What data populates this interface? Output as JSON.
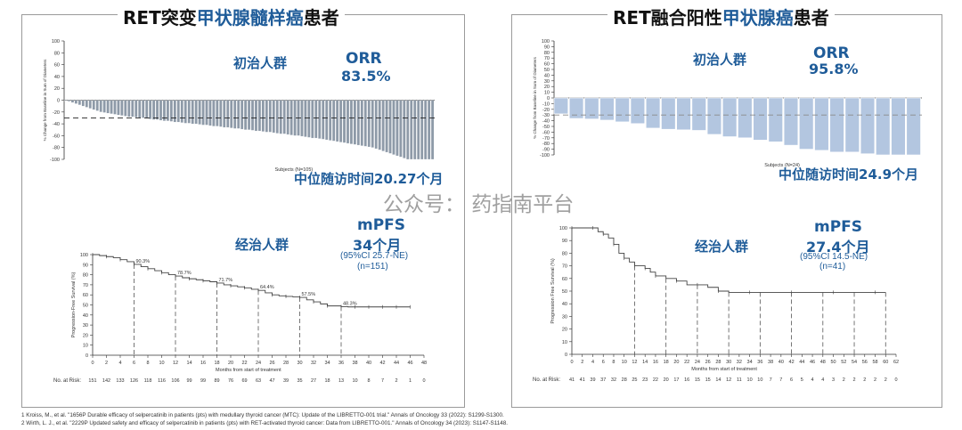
{
  "left": {
    "title_pre": "RET突变",
    "title_hl": "甲状腺髓样癌",
    "title_post": "患者",
    "orr_group": "初治人群",
    "orr_label": "ORR",
    "orr_value": "83.5%",
    "followup": "中位随访时间20.27个月",
    "mpfs_group": "经治人群",
    "mpfs_label": "mPFS",
    "mpfs_value": "34个月",
    "ci": "(95%CI 25.7-NE)",
    "n": "(n=151)"
  },
  "right": {
    "title_pre": "RET融合阳性",
    "title_hl": "甲状腺癌",
    "title_post": "患者",
    "orr_group": "初治人群",
    "orr_label": "ORR",
    "orr_value": "95.8%",
    "followup": "中位随访时间24.9个月",
    "mpfs_group": "经治人群",
    "mpfs_label": "mPFS",
    "mpfs_value": "27.4个月",
    "ci": "(95%CI 14.5-NE)",
    "n": "(n=41)"
  },
  "watermark": "公众号：  药指南平台",
  "references": [
    "1 Kroiss, M., et al. \"1656P Durable efficacy of selpercatinib in patients (pts) with medullary thyroid cancer (MTC): Update of the LIBRETTO-001 trial.\" Annals of Oncology 33 (2022): S1299-S1300.",
    "2 Wirth, L. J., et al. \"2229P Updated safety and efficacy of selpercatinib in patients (pts) with RET-activated thyroid cancer: Data from LIBRETTO-001.\" Annals of Oncology 34 (2023): S1147-S1148."
  ],
  "colors": {
    "accent": "#1f5c99",
    "left_bar": "#8e9aa8",
    "right_bar": "#b3c6e0"
  },
  "chart_data": [
    {
      "type": "bar",
      "id": "left-waterfall",
      "ylabel": "% Change from Baseline in Sum of Diameters",
      "xlabel": "Subjects (N=105)",
      "ylim": [
        -100,
        100
      ],
      "yticks": [
        100,
        80,
        60,
        40,
        20,
        0,
        -20,
        -40,
        -60,
        -80,
        -100
      ],
      "threshold": -30,
      "values": [
        -1,
        -2,
        -4,
        -6,
        -8,
        -10,
        -12,
        -14,
        -16,
        -18,
        -20,
        -21,
        -22,
        -23,
        -24,
        -25,
        -26,
        -27,
        -28,
        -28,
        -29,
        -30,
        -30,
        -31,
        -32,
        -33,
        -33,
        -34,
        -35,
        -35,
        -36,
        -37,
        -37,
        -38,
        -39,
        -39,
        -40,
        -40,
        -41,
        -42,
        -42,
        -43,
        -44,
        -44,
        -45,
        -46,
        -46,
        -47,
        -48,
        -48,
        -49,
        -50,
        -50,
        -51,
        -52,
        -52,
        -53,
        -54,
        -54,
        -55,
        -56,
        -57,
        -57,
        -58,
        -59,
        -60,
        -60,
        -61,
        -62,
        -63,
        -64,
        -64,
        -65,
        -66,
        -67,
        -68,
        -69,
        -70,
        -71,
        -72,
        -73,
        -74,
        -75,
        -76,
        -77,
        -78,
        -79,
        -80,
        -82,
        -84,
        -86,
        -88,
        -90,
        -92,
        -94,
        -96,
        -98,
        -100,
        -100,
        -100,
        -100,
        -100,
        -100,
        -100,
        -100
      ]
    },
    {
      "type": "bar",
      "id": "right-waterfall",
      "ylabel": "% Change from Baseline in Sum of Diameters",
      "xlabel": "Subjects (N=24)",
      "ylim": [
        -100,
        100
      ],
      "yticks": [
        100,
        90,
        80,
        70,
        60,
        50,
        40,
        30,
        20,
        10,
        0,
        -10,
        -20,
        -30,
        -40,
        -50,
        -60,
        -70,
        -80,
        -90,
        -100
      ],
      "threshold": -30,
      "values": [
        -28,
        -36,
        -37,
        -39,
        -42,
        -45,
        -53,
        -55,
        -56,
        -57,
        -64,
        -68,
        -70,
        -74,
        -77,
        -83,
        -90,
        -92,
        -95,
        -95,
        -98,
        -100,
        -100,
        -100
      ]
    },
    {
      "type": "line",
      "id": "left-km",
      "ylabel": "Progression-Free Survival (%)",
      "xlabel": "Months from start of treatment",
      "xlim": [
        0,
        48
      ],
      "ylim": [
        0,
        100
      ],
      "xticks": [
        0,
        2,
        4,
        6,
        8,
        10,
        12,
        14,
        16,
        18,
        20,
        22,
        24,
        26,
        28,
        30,
        32,
        34,
        36,
        38,
        40,
        42,
        44,
        46,
        48
      ],
      "yticks": [
        0,
        10,
        20,
        30,
        40,
        50,
        60,
        70,
        80,
        90,
        100
      ],
      "x": [
        0,
        1,
        2,
        3,
        4,
        5,
        6,
        7,
        8,
        9,
        10,
        11,
        12,
        13,
        14,
        15,
        16,
        17,
        18,
        19,
        20,
        21,
        22,
        23,
        24,
        25,
        26,
        27,
        28,
        29,
        30,
        31,
        32,
        33,
        34,
        35,
        36,
        37,
        38,
        39,
        40,
        41,
        42,
        43,
        44,
        45,
        46
      ],
      "y": [
        100,
        99,
        98,
        97,
        95,
        93,
        90.3,
        88,
        86,
        84,
        82,
        80,
        78.7,
        77,
        76,
        75,
        74,
        73,
        71.7,
        70,
        69,
        68,
        67,
        65.5,
        64.4,
        62,
        60,
        59,
        58.5,
        58,
        57.5,
        55,
        53,
        51,
        49,
        49,
        48.3,
        48,
        48,
        48,
        48,
        48,
        48,
        48,
        48,
        48,
        48
      ],
      "landmarks": [
        {
          "x": 6,
          "label": "90.3%"
        },
        {
          "x": 12,
          "label": "78.7%"
        },
        {
          "x": 18,
          "label": "71.7%"
        },
        {
          "x": 24,
          "label": "64.4%"
        },
        {
          "x": 30,
          "label": "57.5%"
        },
        {
          "x": 36,
          "label": "48.3%"
        }
      ],
      "at_risk_label": "No. at Risk:",
      "at_risk": [
        "151",
        "142",
        "133",
        "126",
        "118",
        "116",
        "106",
        "99",
        "99",
        "89",
        "76",
        "69",
        "63",
        "47",
        "39",
        "35",
        "27",
        "18",
        "13",
        "10",
        "8",
        "7",
        "2",
        "1",
        "0"
      ]
    },
    {
      "type": "line",
      "id": "right-km",
      "ylabel": "Progression Free Survival (%)",
      "xlabel": "Months from start of treatment",
      "xlim": [
        0,
        62
      ],
      "ylim": [
        0,
        100
      ],
      "xticks": [
        0,
        2,
        4,
        6,
        8,
        10,
        12,
        14,
        16,
        18,
        20,
        22,
        24,
        26,
        28,
        30,
        32,
        34,
        36,
        38,
        40,
        42,
        44,
        46,
        48,
        50,
        52,
        54,
        56,
        58,
        60,
        62
      ],
      "yticks": [
        0,
        10,
        20,
        30,
        40,
        50,
        60,
        70,
        80,
        90,
        100
      ],
      "x": [
        0,
        2,
        4,
        5,
        6,
        7,
        8,
        9,
        10,
        11,
        12,
        13,
        14,
        15,
        16,
        18,
        20,
        22,
        24,
        26,
        28,
        30,
        34,
        38,
        42,
        46,
        50,
        54,
        58,
        60
      ],
      "y": [
        100,
        100,
        100,
        97,
        95,
        92,
        87,
        80,
        76,
        73,
        70,
        70,
        68,
        65,
        62,
        60,
        58,
        55,
        55,
        53,
        50,
        49,
        49,
        49,
        49,
        49,
        49,
        49,
        49,
        49
      ],
      "landmarks_x": [
        12,
        18,
        24,
        30,
        36,
        42,
        48,
        54,
        60
      ],
      "at_risk_label": "No. at Risk:",
      "at_risk": [
        "41",
        "41",
        "39",
        "37",
        "32",
        "28",
        "25",
        "23",
        "22",
        "20",
        "17",
        "16",
        "15",
        "15",
        "14",
        "12",
        "11",
        "10",
        "10",
        "7",
        "7",
        "6",
        "5",
        "4",
        "4",
        "3",
        "2",
        "2",
        "2",
        "2",
        "2",
        "0"
      ]
    }
  ]
}
